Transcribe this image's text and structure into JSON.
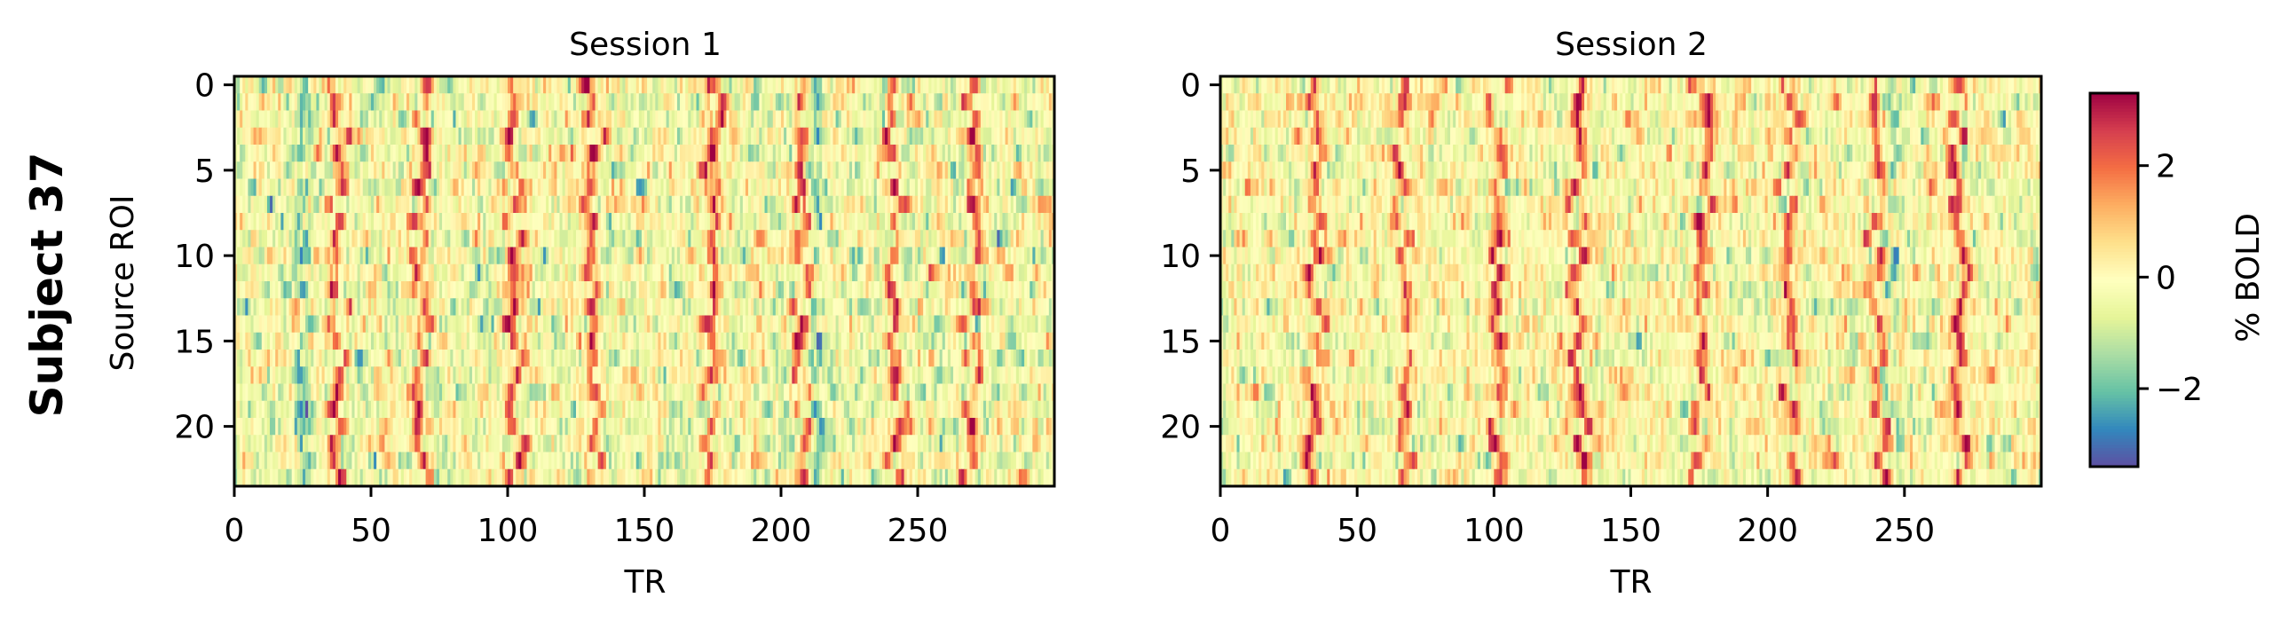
{
  "figure": {
    "row_label": "Subject 37"
  },
  "chart_data": [
    {
      "type": "heatmap",
      "title": "Session 1",
      "xlabel": "TR",
      "ylabel": "Source ROI",
      "n_rows": 24,
      "n_cols": 300,
      "xlim": [
        0,
        300
      ],
      "ylim": [
        23.5,
        -0.5
      ],
      "xticks": [
        0,
        50,
        100,
        150,
        200,
        250
      ],
      "yticks": [
        0,
        5,
        10,
        15,
        20
      ],
      "colormap": "Spectral_r",
      "prominent_peaks_tr": [
        37,
        67,
        102,
        131,
        175,
        207,
        240,
        270
      ],
      "prominent_troughs_tr": [
        25,
        212
      ],
      "background_mean": -0.3,
      "noise_sd": 0.75
    },
    {
      "type": "heatmap",
      "title": "Session 2",
      "xlabel": "TR",
      "ylabel": "",
      "n_rows": 24,
      "n_cols": 300,
      "xlim": [
        0,
        300
      ],
      "ylim": [
        23.5,
        -0.5
      ],
      "xticks": [
        0,
        50,
        100,
        150,
        200,
        250
      ],
      "yticks": [
        0,
        5,
        10,
        15,
        20
      ],
      "colormap": "Spectral_r",
      "prominent_peaks_tr": [
        35,
        67,
        101,
        131,
        176,
        208,
        240,
        270
      ],
      "prominent_troughs_tr": [
        245
      ],
      "background_mean": -0.1,
      "noise_sd": 0.7
    }
  ],
  "colorbar": {
    "label": "% BOLD",
    "range": [
      -3.4,
      3.3
    ],
    "ticks": [
      -2,
      0,
      2
    ],
    "tick_labels": [
      "−2",
      "0",
      "2"
    ],
    "colormap_stops": [
      "#5e4fa2",
      "#3288bd",
      "#66c2a5",
      "#abdda4",
      "#e6f598",
      "#ffffbf",
      "#fee08b",
      "#fdae61",
      "#f46d43",
      "#d53e4f",
      "#9e0142"
    ]
  }
}
